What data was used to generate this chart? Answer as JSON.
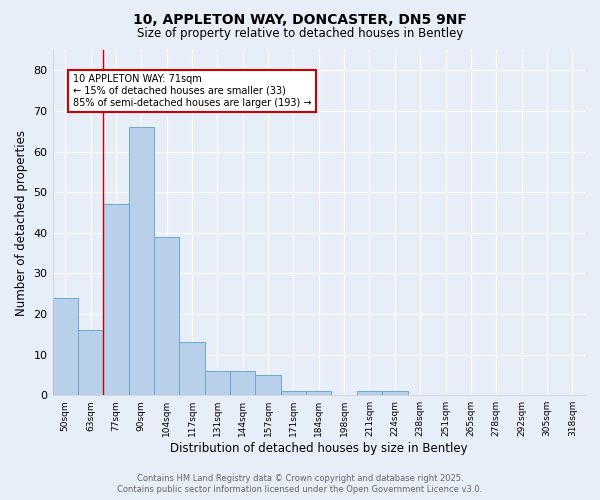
{
  "title_line1": "10, APPLETON WAY, DONCASTER, DN5 9NF",
  "title_line2": "Size of property relative to detached houses in Bentley",
  "xlabel": "Distribution of detached houses by size in Bentley",
  "ylabel": "Number of detached properties",
  "bar_labels": [
    "50sqm",
    "63sqm",
    "77sqm",
    "90sqm",
    "104sqm",
    "117sqm",
    "131sqm",
    "144sqm",
    "157sqm",
    "171sqm",
    "184sqm",
    "198sqm",
    "211sqm",
    "224sqm",
    "238sqm",
    "251sqm",
    "265sqm",
    "278sqm",
    "292sqm",
    "305sqm",
    "318sqm"
  ],
  "bar_values": [
    24,
    16,
    47,
    66,
    39,
    13,
    6,
    6,
    5,
    1,
    1,
    0,
    1,
    1,
    0,
    0,
    0,
    0,
    0,
    0,
    0
  ],
  "bar_color": "#b8d0ea",
  "bar_edgecolor": "#6aaad4",
  "ylim": [
    0,
    85
  ],
  "yticks": [
    0,
    10,
    20,
    30,
    40,
    50,
    60,
    70,
    80
  ],
  "vline_x_index": 1.5,
  "annotation_text": "10 APPLETON WAY: 71sqm\n← 15% of detached houses are smaller (33)\n85% of semi-detached houses are larger (193) →",
  "annotation_box_color": "#ffffff",
  "annotation_box_edgecolor": "#cc0000",
  "vline_color": "#cc0000",
  "footer_line1": "Contains HM Land Registry data © Crown copyright and database right 2025.",
  "footer_line2": "Contains public sector information licensed under the Open Government Licence v3.0.",
  "bg_color": "#e8eef7",
  "plot_bg_color": "#e8eef7",
  "grid_color": "#ffffff"
}
